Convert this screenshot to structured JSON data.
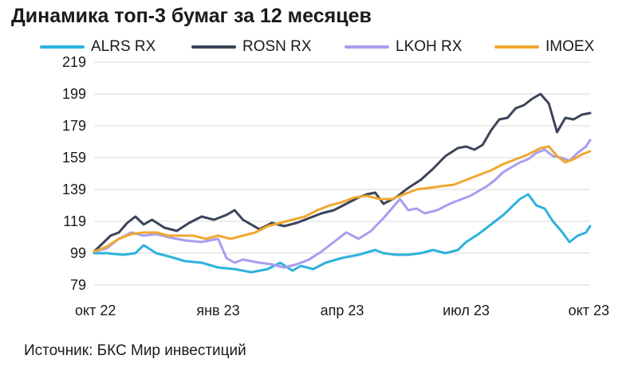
{
  "title": "Динамика топ-3 бумаг за 12 месяцев",
  "source": "Источник: БКС Мир инвестиций",
  "chart_data": {
    "type": "line",
    "ylim": [
      79,
      219
    ],
    "yticks": [
      "219",
      "199",
      "179",
      "159",
      "139",
      "119",
      "99",
      "79"
    ],
    "ytick_values": [
      219,
      199,
      179,
      159,
      139,
      119,
      99,
      79
    ],
    "xlim": [
      0,
      12
    ],
    "xticks": [
      "окт 22",
      "янв 23",
      "апр 23",
      "июл 23",
      "окт 23"
    ],
    "xtick_values": [
      0,
      3,
      6,
      9,
      12
    ],
    "grid": true,
    "legend_position": "top",
    "series": [
      {
        "name": "ALRS RX",
        "color": "#2eb2dd",
        "x": [
          0,
          0.3,
          0.7,
          1.0,
          1.2,
          1.5,
          1.8,
          2.2,
          2.6,
          3.0,
          3.4,
          3.8,
          4.2,
          4.5,
          4.8,
          5.0,
          5.3,
          5.6,
          6.0,
          6.4,
          6.8,
          7.0,
          7.3,
          7.6,
          7.9,
          8.2,
          8.5,
          8.8,
          9.0,
          9.3,
          9.6,
          9.9,
          10.1,
          10.3,
          10.5,
          10.7,
          10.9,
          11.1,
          11.3,
          11.5,
          11.7,
          11.9,
          12.0
        ],
        "values": [
          99,
          99,
          98,
          99,
          104,
          99,
          97,
          94,
          93,
          90,
          89,
          87,
          89,
          93,
          88,
          91,
          89,
          93,
          96,
          98,
          101,
          99,
          98,
          98,
          99,
          101,
          99,
          101,
          106,
          111,
          117,
          123,
          128,
          133,
          136,
          129,
          127,
          119,
          113,
          106,
          110,
          112,
          116
        ]
      },
      {
        "name": "ROSN RX",
        "color": "#3c4459",
        "x": [
          0,
          0.2,
          0.4,
          0.6,
          0.8,
          1.0,
          1.2,
          1.4,
          1.7,
          2.0,
          2.3,
          2.6,
          2.9,
          3.2,
          3.4,
          3.6,
          3.8,
          4.0,
          4.3,
          4.6,
          4.9,
          5.2,
          5.5,
          5.8,
          6.1,
          6.4,
          6.6,
          6.8,
          7.0,
          7.3,
          7.6,
          7.9,
          8.2,
          8.5,
          8.8,
          9.0,
          9.2,
          9.4,
          9.6,
          9.8,
          10.0,
          10.2,
          10.4,
          10.6,
          10.8,
          11.0,
          11.2,
          11.4,
          11.6,
          11.8,
          12.0
        ],
        "values": [
          100,
          105,
          110,
          112,
          118,
          122,
          117,
          120,
          115,
          113,
          118,
          122,
          120,
          123,
          126,
          120,
          117,
          114,
          118,
          116,
          118,
          121,
          124,
          126,
          130,
          134,
          136,
          137,
          130,
          134,
          140,
          145,
          152,
          160,
          165,
          166,
          164,
          167,
          176,
          183,
          184,
          190,
          192,
          196,
          199,
          193,
          175,
          184,
          183,
          186,
          187
        ]
      },
      {
        "name": "LKOH RX",
        "color": "#a99df0",
        "x": [
          0,
          0.3,
          0.6,
          0.9,
          1.2,
          1.5,
          1.8,
          2.2,
          2.6,
          3.0,
          3.2,
          3.4,
          3.6,
          3.8,
          4.0,
          4.3,
          4.6,
          4.9,
          5.2,
          5.5,
          5.8,
          6.1,
          6.4,
          6.7,
          7.0,
          7.2,
          7.4,
          7.6,
          7.8,
          8.0,
          8.3,
          8.6,
          8.9,
          9.1,
          9.3,
          9.5,
          9.7,
          9.9,
          10.1,
          10.3,
          10.5,
          10.7,
          10.9,
          11.1,
          11.3,
          11.5,
          11.7,
          11.9,
          12.0
        ],
        "values": [
          100,
          102,
          108,
          112,
          110,
          111,
          109,
          107,
          106,
          108,
          96,
          93,
          95,
          94,
          93,
          92,
          90,
          92,
          95,
          100,
          106,
          112,
          108,
          113,
          121,
          127,
          133,
          126,
          127,
          124,
          126,
          130,
          133,
          135,
          138,
          141,
          145,
          150,
          153,
          156,
          158,
          162,
          164,
          160,
          159,
          157,
          162,
          166,
          170
        ]
      },
      {
        "name": "IMOEX",
        "color": "#f0a830",
        "x": [
          0,
          0.3,
          0.6,
          0.9,
          1.2,
          1.5,
          1.8,
          2.1,
          2.4,
          2.7,
          3.0,
          3.3,
          3.6,
          3.9,
          4.2,
          4.5,
          4.8,
          5.1,
          5.4,
          5.7,
          6.0,
          6.3,
          6.6,
          6.9,
          7.2,
          7.5,
          7.8,
          8.1,
          8.4,
          8.7,
          9.0,
          9.3,
          9.6,
          9.9,
          10.2,
          10.5,
          10.8,
          11.0,
          11.2,
          11.4,
          11.6,
          11.8,
          12.0
        ],
        "values": [
          100,
          103,
          108,
          111,
          112,
          112,
          110,
          110,
          110,
          108,
          110,
          108,
          110,
          112,
          116,
          118,
          120,
          122,
          126,
          129,
          131,
          134,
          135,
          133,
          133,
          136,
          139,
          140,
          141,
          142,
          145,
          148,
          151,
          155,
          158,
          161,
          165,
          166,
          160,
          156,
          158,
          161,
          163
        ]
      }
    ]
  }
}
